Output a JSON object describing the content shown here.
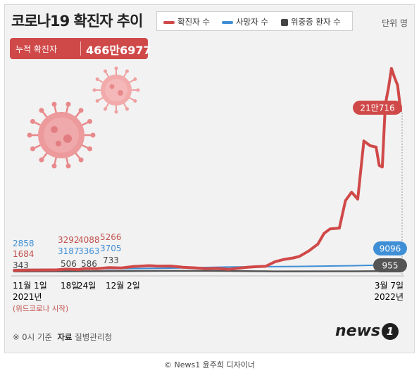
{
  "title": "코로나19 확진자 추이",
  "legend": {
    "confirmed": "확진자 수",
    "deaths": "사망자 수",
    "critical": "위중증 환자 수"
  },
  "unit": "단위 명",
  "total": {
    "label": "누적 확진자",
    "value": "466만6977"
  },
  "colors": {
    "confirmed": "#d04949",
    "deaths": "#3f8fd6",
    "critical": "#555555",
    "virus": "#e8898b"
  },
  "annotations": {
    "start": {
      "deaths": "2858",
      "confirmed": "1684",
      "critical": "343"
    },
    "mid1": {
      "confirmed": "3292",
      "deaths": "3187",
      "critical": "506"
    },
    "mid2": {
      "confirmed": "4088",
      "deaths": "3363",
      "critical": "586"
    },
    "mid3": {
      "confirmed": "5266",
      "deaths": "3705",
      "critical": "733"
    },
    "end": {
      "confirmed": "21만716",
      "deaths": "9096",
      "critical": "955"
    }
  },
  "x_labels": {
    "start_date": "11월 1일",
    "start_year": "2021년",
    "start_note": "(위드코로나 시작)",
    "tick2": "18일",
    "tick3": "24일",
    "tick4": "12월 2일",
    "end_date": "3월 7일",
    "end_year": "2022년"
  },
  "footer": {
    "note": "※ 0시 기준",
    "source_label": "자료",
    "source": "질병관리청",
    "logo": "news",
    "logo_num": "1",
    "credit": "© News1 윤주희 디자이너"
  },
  "chart_data": {
    "type": "line",
    "x_range": [
      "2021-11-01",
      "2022-03-07"
    ],
    "series": [
      {
        "name": "확진자 수",
        "color": "#d04949",
        "points": [
          [
            "2021-11-01",
            1684
          ],
          [
            "2021-11-05",
            2000
          ],
          [
            "2021-11-10",
            2200
          ],
          [
            "2021-11-15",
            2400
          ],
          [
            "2021-11-18",
            3292
          ],
          [
            "2021-11-22",
            2800
          ],
          [
            "2021-11-24",
            4088
          ],
          [
            "2021-11-28",
            3900
          ],
          [
            "2021-12-02",
            5266
          ],
          [
            "2021-12-06",
            4900
          ],
          [
            "2021-12-10",
            6800
          ],
          [
            "2021-12-15",
            7800
          ],
          [
            "2021-12-18",
            7300
          ],
          [
            "2021-12-22",
            7400
          ],
          [
            "2021-12-26",
            5800
          ],
          [
            "2021-12-30",
            5000
          ],
          [
            "2022-01-03",
            4000
          ],
          [
            "2022-01-06",
            4400
          ],
          [
            "2022-01-10",
            3000
          ],
          [
            "2022-01-13",
            4500
          ],
          [
            "2022-01-16",
            5800
          ],
          [
            "2022-01-19",
            6500
          ],
          [
            "2022-01-22",
            7000
          ],
          [
            "2022-01-25",
            13000
          ],
          [
            "2022-01-28",
            16000
          ],
          [
            "2022-01-31",
            18000
          ],
          [
            "2022-02-02",
            20000
          ],
          [
            "2022-02-05",
            27000
          ],
          [
            "2022-02-08",
            36000
          ],
          [
            "2022-02-10",
            50000
          ],
          [
            "2022-02-12",
            56000
          ],
          [
            "2022-02-15",
            57000
          ],
          [
            "2022-02-17",
            93000
          ],
          [
            "2022-02-19",
            104000
          ],
          [
            "2022-02-21",
            95000
          ],
          [
            "2022-02-23",
            171000
          ],
          [
            "2022-02-25",
            165000
          ],
          [
            "2022-02-27",
            163000
          ],
          [
            "2022-02-28",
            139000
          ],
          [
            "2022-03-01",
            137000
          ],
          [
            "2022-03-02",
            219000
          ],
          [
            "2022-03-03",
            240000
          ],
          [
            "2022-03-04",
            266000
          ],
          [
            "2022-03-05",
            254000
          ],
          [
            "2022-03-06",
            244000
          ],
          [
            "2022-03-07",
            210716
          ]
        ]
      },
      {
        "name": "사망자 수",
        "color": "#3f8fd6",
        "points": [
          [
            "2021-11-01",
            2858
          ],
          [
            "2021-11-18",
            3187
          ],
          [
            "2021-11-24",
            3363
          ],
          [
            "2021-12-02",
            3705
          ],
          [
            "2021-12-20",
            4500
          ],
          [
            "2022-01-10",
            6100
          ],
          [
            "2022-02-01",
            6800
          ],
          [
            "2022-02-20",
            7800
          ],
          [
            "2022-03-07",
            9096
          ]
        ]
      },
      {
        "name": "위중증 환자 수",
        "color": "#555555",
        "points": [
          [
            "2021-11-01",
            343
          ],
          [
            "2021-11-18",
            506
          ],
          [
            "2021-11-24",
            586
          ],
          [
            "2021-12-02",
            733
          ],
          [
            "2021-12-20",
            1000
          ],
          [
            "2022-01-05",
            1000
          ],
          [
            "2022-01-25",
            400
          ],
          [
            "2022-02-20",
            500
          ],
          [
            "2022-03-07",
            955
          ]
        ]
      }
    ],
    "ylim": [
      0,
      280000
    ]
  }
}
